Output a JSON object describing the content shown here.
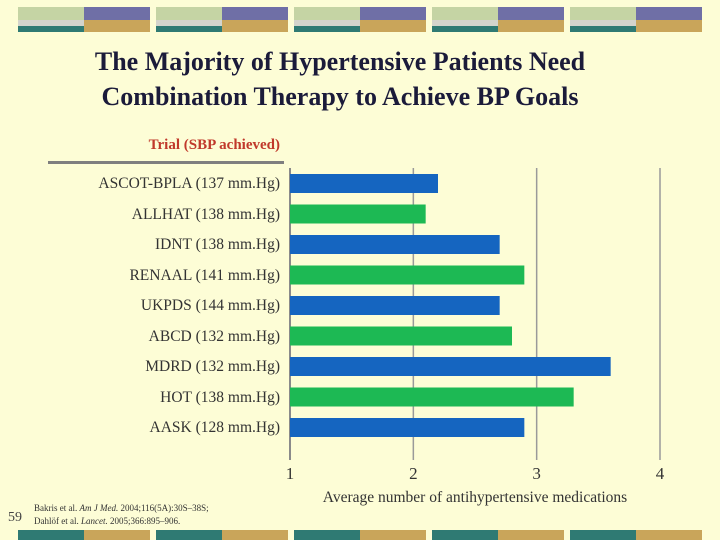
{
  "colors": {
    "background": "#fdfdd6",
    "blue_bar": "#1565c0",
    "green_bar": "#1db954",
    "header_text": "#c0392b",
    "deco_sage": "#c5d4a4",
    "deco_gray": "#d4d4cc",
    "deco_purple": "#6f6fa6",
    "deco_teal": "#2f7a73",
    "deco_gold": "#c9a55a"
  },
  "slide": {
    "title_line1": "The Majority of Hypertensive Patients Need",
    "title_line2": "Combination Therapy to Achieve BP Goals",
    "slide_number": "59",
    "ref1_prefix": "Bakris et al. ",
    "ref1_journal": "Am J Med.",
    "ref1_suffix": " 2004;116(5A):30S–38S;",
    "ref2_prefix": "Dahlöf et al. ",
    "ref2_journal": "Lancet.",
    "ref2_suffix": " 2005;366:895–906."
  },
  "chart_data": {
    "type": "bar",
    "orientation": "horizontal",
    "column_header": "Trial (SBP achieved)",
    "categories": [
      "ASCOT-BPLA (137 mm.Hg)",
      "ALLHAT (138 mm.Hg)",
      "IDNT (138 mm.Hg)",
      "RENAAL (141 mm.Hg)",
      "UKPDS (144 mm.Hg)",
      "ABCD (132 mm.Hg)",
      "MDRD (132 mm.Hg)",
      "HOT (138 mm.Hg)",
      "AASK (128 mm.Hg)"
    ],
    "values": [
      2.2,
      2.1,
      2.7,
      2.9,
      2.7,
      2.8,
      3.6,
      3.3,
      2.9
    ],
    "bar_colors": [
      "blue",
      "green",
      "blue",
      "green",
      "blue",
      "green",
      "blue",
      "green",
      "blue"
    ],
    "xlim": [
      1,
      4
    ],
    "xticks": [
      "1",
      "2",
      "3",
      "4"
    ],
    "xlabel": "Average number of antihypertensive medications",
    "ylabel": "",
    "grid": "vertical gridlines at ticks 2, 3, 4"
  }
}
